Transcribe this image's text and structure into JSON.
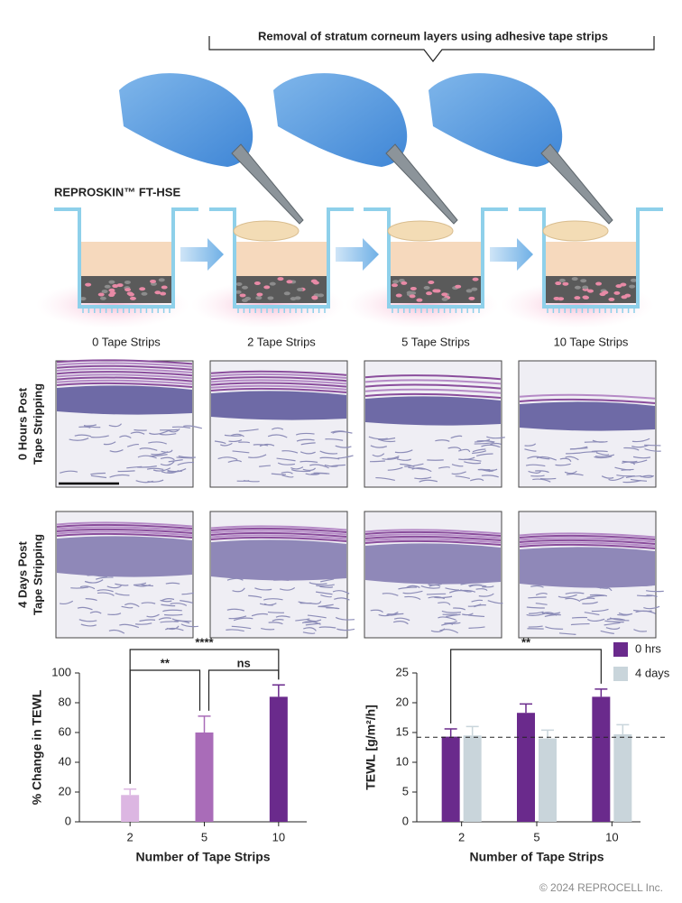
{
  "header": {
    "caption": "Removal of stratum corneum layers using adhesive tape strips"
  },
  "model_label": "REPROSKIN™ FT-HSE",
  "conditions": [
    "0 Tape Strips",
    "2 Tape Strips",
    "5 Tape Strips",
    "10 Tape Strips"
  ],
  "rows": [
    [
      "0 Hours Post",
      "Tape Stripping"
    ],
    [
      "4 Days Post",
      "Tape Stripping"
    ]
  ],
  "chart_data": [
    {
      "type": "bar",
      "y_label": "% Change in TEWL",
      "x_label": "Number of Tape Strips",
      "categories": [
        "2",
        "5",
        "10"
      ],
      "values": [
        18,
        60,
        84
      ],
      "errors": [
        4,
        11,
        8
      ],
      "colors": [
        "#dcb6e2",
        "#a96cb8",
        "#6a2a8c"
      ],
      "ylim": [
        0,
        100
      ],
      "yticks": [
        0,
        20,
        40,
        60,
        80,
        100
      ],
      "annotations": [
        {
          "text": "****",
          "between": [
            "2",
            "10"
          ]
        },
        {
          "text": "**",
          "between": [
            "2",
            "5"
          ]
        },
        {
          "text": "ns",
          "between": [
            "5",
            "10"
          ]
        }
      ]
    },
    {
      "type": "grouped_bar",
      "y_label": "TEWL [g/m²/h]",
      "x_label": "Number of Tape Strips",
      "categories": [
        "2",
        "5",
        "10"
      ],
      "series": [
        {
          "name": "0 hrs",
          "color": "#6a2a8c",
          "values": [
            14.3,
            18.3,
            21
          ],
          "errors": [
            1.3,
            1.5,
            1.3
          ]
        },
        {
          "name": "4 days",
          "color": "#c9d5db",
          "values": [
            14.5,
            14,
            14.7
          ],
          "errors": [
            1.5,
            1.4,
            1.6
          ]
        }
      ],
      "ylim": [
        0,
        25
      ],
      "yticks": [
        0,
        5,
        10,
        15,
        20,
        25
      ],
      "reference_line": 14.2,
      "legend": "top-right",
      "annotations": [
        {
          "text": "**",
          "between": [
            "2",
            "10"
          ],
          "series": "0 hrs"
        }
      ]
    }
  ],
  "footer": "© 2024 REPROCELL Inc."
}
